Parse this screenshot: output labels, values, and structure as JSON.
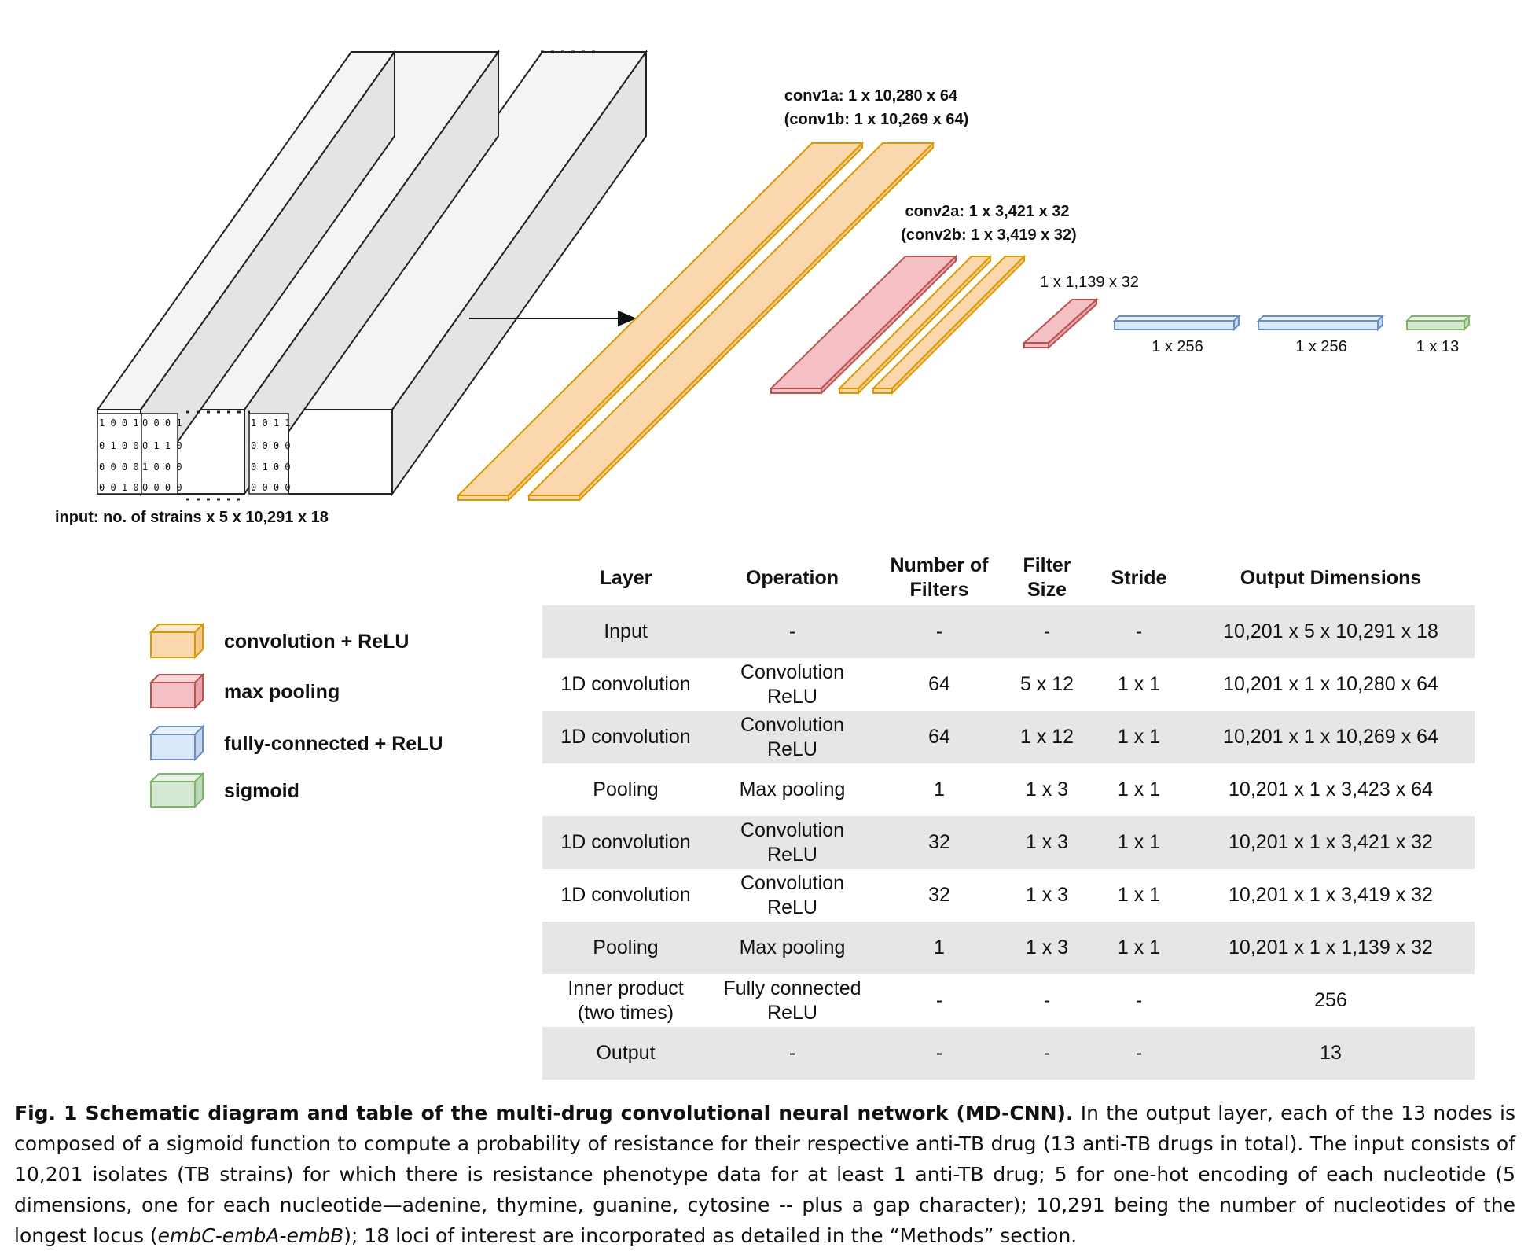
{
  "diagram": {
    "input_label": "input: no. of strains x 5 x 10,291 x 18",
    "conv1_label_a": "conv1a: 1 x 10,280 x 64",
    "conv1_label_b": "(conv1b: 1 x 10,269 x 64)",
    "conv2_label_a": "conv2a: 1 x 3,421 x 32",
    "conv2_label_b": "(conv2b: 1 x 3,419 x 32)",
    "pool2_label": "1 x 1,139 x 32",
    "fc1_label": "1 x 256",
    "fc2_label": "1 x 256",
    "out_label": "1 x 13",
    "bit_matrices": [
      [
        "1 0 0 1",
        "0 1 0 0",
        "0 0 0 0",
        "0 0 1 0"
      ],
      [
        "0 0 0 1",
        "0 1 1 0",
        "1 0 0 0",
        "0 0 0 0"
      ],
      [
        "1 0 1 1",
        "0 0 0 0",
        "0 1 0 0",
        "0 0 0 0"
      ]
    ],
    "colors": {
      "convolution": "#fad7ac",
      "convolution_stroke": "#d79b00",
      "pooling": "#f4c0c5",
      "pooling_stroke": "#b85450",
      "fully_connected": "#dae8fc",
      "fully_connected_stroke": "#6c8ebf",
      "sigmoid": "#d5e8d4",
      "sigmoid_stroke": "#82b366"
    }
  },
  "legend": [
    {
      "label": "convolution + ReLU",
      "fill": "#fad7ac",
      "stroke": "#d79b00"
    },
    {
      "label": "max pooling",
      "fill": "#f4c0c5",
      "stroke": "#b85450"
    },
    {
      "label": "fully-connected + ReLU",
      "fill": "#dae8fc",
      "stroke": "#6c8ebf"
    },
    {
      "label": "sigmoid",
      "fill": "#d5e8d4",
      "stroke": "#82b366"
    }
  ],
  "table": {
    "headers": [
      "Layer",
      "Operation",
      "Number of Filters",
      "Filter Size",
      "Stride",
      "Output Dimensions"
    ],
    "rows": [
      [
        "Input",
        "-",
        "-",
        "-",
        "-",
        "10,201 x 5 x 10,291 x 18"
      ],
      [
        "1D convolution",
        "Convolution ReLU",
        "64",
        "5 x 12",
        "1 x 1",
        "10,201 x 1 x 10,280 x 64"
      ],
      [
        "1D convolution",
        "Convolution ReLU",
        "64",
        "1 x 12",
        "1 x 1",
        "10,201 x 1 x 10,269 x 64"
      ],
      [
        "Pooling",
        "Max pooling",
        "1",
        "1 x 3",
        "1 x 1",
        "10,201 x 1 x 3,423 x 64"
      ],
      [
        "1D convolution",
        "Convolution ReLU",
        "32",
        "1 x 3",
        "1 x 1",
        "10,201 x 1 x 3,421 x 32"
      ],
      [
        "1D convolution",
        "Convolution ReLU",
        "32",
        "1 x 3",
        "1 x 1",
        "10,201 x 1 x 3,419 x 32"
      ],
      [
        "Pooling",
        "Max pooling",
        "1",
        "1 x 3",
        "1 x 1",
        "10,201 x 1 x 1,139 x 32"
      ],
      [
        "Inner product (two times)",
        "Fully connected ReLU",
        "-",
        "-",
        "-",
        "256"
      ],
      [
        "Output",
        "-",
        "-",
        "-",
        "-",
        "13"
      ]
    ]
  },
  "caption": {
    "bold": "Fig. 1 Schematic diagram and table of the multi-drug convolutional neural network (MD-CNN).",
    "text_1": " In the output layer, each of the 13 nodes is composed of a sigmoid function to compute a probability of resistance for their respective anti-TB drug (13 anti-TB drugs in total). The input consists of 10,201 isolates (TB strains) for which there is resistance phenotype data for at least 1 anti-TB drug; 5 for one-hot encoding of each nucleotide (5 dimensions, one for each nucleotide—adenine, thymine, guanine, cytosine -- plus a gap character); 10,291 being the number of nucleotides of the longest locus (",
    "italic": "embC-embA-embB",
    "text_2": "); 18 loci of interest are incorporated as detailed in the “Methods” section."
  }
}
